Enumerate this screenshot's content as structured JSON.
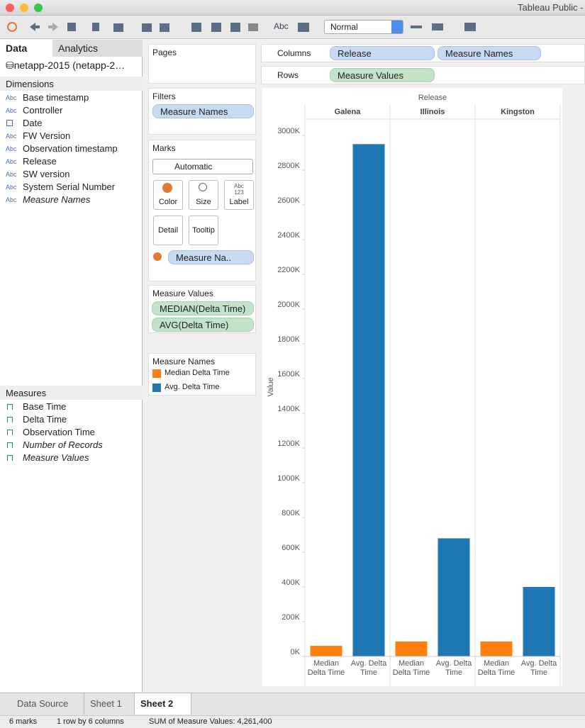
{
  "window": {
    "title": "Tableau Public -"
  },
  "toolbar": {
    "abc": "Abc",
    "fit": "Normal"
  },
  "data_pane": {
    "tabs": [
      "Data",
      "Analytics"
    ],
    "datasource": "netapp-2015 (netapp-2…",
    "dimensions_title": "Dimensions",
    "dimensions": [
      {
        "icon": "Abc",
        "name": "Base timestamp"
      },
      {
        "icon": "Abc",
        "name": "Controller"
      },
      {
        "name": "Date"
      },
      {
        "icon": "Abc",
        "name": "FW Version"
      },
      {
        "icon": "Abc",
        "name": "Observation timestamp"
      },
      {
        "icon": "Abc",
        "name": "Release"
      },
      {
        "icon": "Abc",
        "name": "SW version"
      },
      {
        "icon": "Abc",
        "name": "System Serial Number"
      },
      {
        "icon": "Abc",
        "name": "Measure Names",
        "italic": true
      }
    ],
    "measures_title": "Measures",
    "measures": [
      {
        "name": "Base Time"
      },
      {
        "name": "Delta Time"
      },
      {
        "name": "Observation Time"
      },
      {
        "name": "Number of Records",
        "italic": true
      },
      {
        "name": "Measure Values",
        "italic": true
      }
    ]
  },
  "cards": {
    "pages": "Pages",
    "filters": {
      "title": "Filters",
      "pills": [
        "Measure Names"
      ]
    },
    "marks": {
      "title": "Marks",
      "type": "Automatic",
      "buttons": [
        "Color",
        "Size",
        "Label",
        "Detail",
        "Tooltip"
      ],
      "label_icon": [
        "Abc",
        "123"
      ],
      "pills": [
        "Measure Na.."
      ]
    },
    "measure_values": {
      "title": "Measure Values",
      "pills": [
        "MEDIAN(Delta Time)",
        "AVG(Delta Time)"
      ]
    },
    "legend": {
      "title": "Measure Names"
    }
  },
  "shelves": {
    "columns": {
      "label": "Columns",
      "pills": [
        "Release",
        "Measure Names"
      ]
    },
    "rows": {
      "label": "Rows",
      "pills": [
        "Measure Values"
      ]
    }
  },
  "chart_data": {
    "type": "bar",
    "x_label": "Release",
    "y_label": "Value",
    "categories": [
      "Galena",
      "Illinois",
      "Kingston"
    ],
    "series": [
      {
        "name": "Median Delta Time",
        "color": "#ff7f0e",
        "values": [
          61000,
          86000,
          86000
        ]
      },
      {
        "name": "Avg. Delta Time",
        "color": "#1f77b4",
        "values": [
          2950000,
          680000,
          400000
        ]
      }
    ],
    "ylim": [
      0,
      3090000
    ],
    "yticks": [
      {
        "value": 0,
        "label": "0K"
      },
      {
        "value": 200000,
        "label": "200K"
      },
      {
        "value": 400000,
        "label": "400K"
      },
      {
        "value": 600000,
        "label": "600K"
      },
      {
        "value": 800000,
        "label": "800K"
      },
      {
        "value": 1000000,
        "label": "1000K"
      },
      {
        "value": 1200000,
        "label": "1200K"
      },
      {
        "value": 1400000,
        "label": "1400K"
      },
      {
        "value": 1600000,
        "label": "1600K"
      },
      {
        "value": 1800000,
        "label": "1800K"
      },
      {
        "value": 2000000,
        "label": "2000K"
      },
      {
        "value": 2200000,
        "label": "2200K"
      },
      {
        "value": 2400000,
        "label": "2400K"
      },
      {
        "value": 2600000,
        "label": "2600K"
      },
      {
        "value": 2800000,
        "label": "2800K"
      },
      {
        "value": 3000000,
        "label": "3000K"
      }
    ],
    "grid": false
  },
  "sheet_tabs": {
    "tabs": [
      "Data Source",
      "Sheet 1",
      "Sheet 2"
    ],
    "active": 2
  },
  "status": [
    "6 marks",
    "1 row by 6 columns",
    "SUM of Measure Values: 4,261,400"
  ]
}
